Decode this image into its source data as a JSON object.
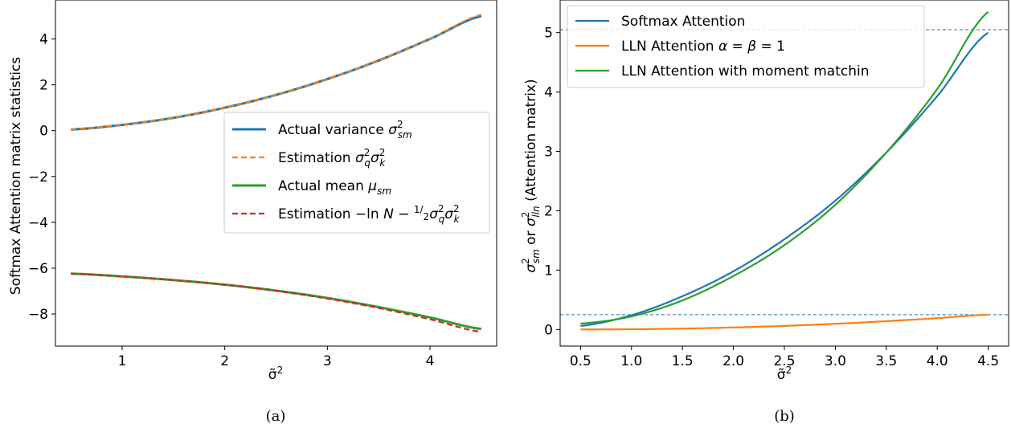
{
  "chart_data": [
    {
      "type": "line",
      "caption": "(a)",
      "ylabel": "Softmax Attention matrix statistics",
      "xlabel": "σ̃²",
      "xlim": [
        0.35,
        4.65
      ],
      "ylim": [
        -9.4,
        5.7
      ],
      "xticks": [
        1,
        2,
        3,
        4
      ],
      "xtick_labels": [
        "1",
        "2",
        "3",
        "4"
      ],
      "yticks": [
        4,
        2,
        0,
        -2,
        -4,
        -6,
        -8
      ],
      "ytick_labels": [
        "4",
        "2",
        "0",
        "−2",
        "−4",
        "−6",
        "−8"
      ],
      "grid": false,
      "legend_position": "center-right",
      "x": [
        0.5,
        1.0,
        1.5,
        2.0,
        2.5,
        3.0,
        3.5,
        4.0,
        4.5
      ],
      "series": [
        {
          "name": "Actual variance σ²sm",
          "color": "#1f77b4",
          "style": "solid",
          "values": [
            0.05,
            0.25,
            0.56,
            1.0,
            1.56,
            2.25,
            3.06,
            4.0,
            5.0
          ]
        },
        {
          "name": "Estimation σ²qσ²k",
          "color": "#ff7f0e",
          "style": "dashed",
          "values": [
            0.06,
            0.25,
            0.56,
            1.0,
            1.56,
            2.25,
            3.06,
            4.0,
            5.06
          ]
        },
        {
          "name": "Actual mean μsm",
          "color": "#2ca02c",
          "style": "solid",
          "values": [
            -6.24,
            -6.36,
            -6.52,
            -6.72,
            -6.98,
            -7.3,
            -7.7,
            -8.15,
            -8.65
          ]
        },
        {
          "name": "Estimation −ln N − ½σ²qσ²k",
          "color": "#d62728",
          "style": "dashed",
          "values": [
            -6.24,
            -6.36,
            -6.52,
            -6.72,
            -6.99,
            -7.33,
            -7.74,
            -8.23,
            -8.78
          ]
        }
      ]
    },
    {
      "type": "line",
      "caption": "(b)",
      "ylabel": "σ²sm or σ²lln (Attention matrix)",
      "xlabel": "σ̃²",
      "xlim": [
        0.3,
        4.7
      ],
      "ylim": [
        -0.28,
        5.55
      ],
      "xticks": [
        0.5,
        1.0,
        1.5,
        2.0,
        2.5,
        3.0,
        3.5,
        4.0,
        4.5
      ],
      "xtick_labels": [
        "0.5",
        "1.0",
        "1.5",
        "2.0",
        "2.5",
        "3.0",
        "3.5",
        "4.0",
        "4.5"
      ],
      "yticks": [
        0,
        1,
        2,
        3,
        4,
        5
      ],
      "ytick_labels": [
        "0",
        "1",
        "2",
        "3",
        "4",
        "5"
      ],
      "grid": false,
      "legend_position": "top-left",
      "reference_lines": [
        5.05,
        0.25
      ],
      "reference_line_color": "#1f77b4",
      "x": [
        0.5,
        1.0,
        1.5,
        2.0,
        2.5,
        3.0,
        3.5,
        4.0,
        4.5
      ],
      "series": [
        {
          "name": "Softmax Attention",
          "color": "#1f77b4",
          "values": [
            0.06,
            0.24,
            0.56,
            0.98,
            1.52,
            2.17,
            2.98,
            3.93,
            5.0
          ]
        },
        {
          "name": "LLN Attention α = β = 1",
          "color": "#ff7f0e",
          "values": [
            0.0,
            0.004,
            0.015,
            0.034,
            0.06,
            0.095,
            0.14,
            0.19,
            0.25
          ]
        },
        {
          "name": "LLN Attention with moment matchin",
          "color": "#2ca02c",
          "values": [
            0.1,
            0.22,
            0.49,
            0.9,
            1.42,
            2.1,
            2.98,
            4.05,
            5.35
          ]
        }
      ]
    }
  ]
}
